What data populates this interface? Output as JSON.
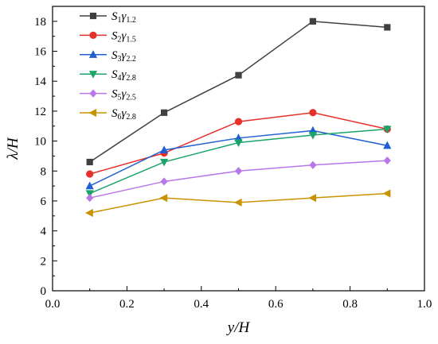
{
  "chart_data": {
    "type": "line",
    "xlabel": "y/H",
    "ylabel": "λ/H",
    "xlim": [
      0.0,
      1.0
    ],
    "ylim": [
      0,
      19
    ],
    "x_ticks": [
      0.0,
      0.2,
      0.4,
      0.6,
      0.8,
      1.0
    ],
    "y_ticks": [
      0,
      2,
      4,
      6,
      8,
      10,
      12,
      14,
      16,
      18
    ],
    "x_tick_labels": [
      "0.0",
      "0.2",
      "0.4",
      "0.6",
      "0.8",
      "1.0"
    ],
    "y_tick_labels": [
      "0",
      "2",
      "4",
      "6",
      "8",
      "10",
      "12",
      "14",
      "16",
      "18"
    ],
    "grid": false,
    "legend_position": "top-left",
    "x": [
      0.1,
      0.3,
      0.5,
      0.7,
      0.9
    ],
    "series": [
      {
        "name": "S1γ1.2",
        "sym": "S",
        "sub1": "1",
        "greek": "γ",
        "sub2": "1.2",
        "color": "#404040",
        "marker": "square",
        "values": [
          8.6,
          11.9,
          14.4,
          18.0,
          17.6
        ]
      },
      {
        "name": "S2γ1.5",
        "sym": "S",
        "sub1": "2",
        "greek": "γ",
        "sub2": "1.5",
        "color": "#e8302b",
        "marker": "circle",
        "values": [
          7.8,
          9.2,
          11.3,
          11.9,
          10.8
        ]
      },
      {
        "name": "S3γ2.2",
        "sym": "S",
        "sub1": "3",
        "greek": "γ",
        "sub2": "2.2",
        "color": "#1f5fd1",
        "marker": "triangle-up",
        "values": [
          7.0,
          9.4,
          10.2,
          10.7,
          9.7
        ]
      },
      {
        "name": "S4γ2.8",
        "sym": "S",
        "sub1": "4",
        "greek": "γ",
        "sub2": "2.8",
        "color": "#1aa46a",
        "marker": "triangle-down",
        "values": [
          6.5,
          8.6,
          9.9,
          10.4,
          10.8
        ]
      },
      {
        "name": "S5γ2.5",
        "sym": "S",
        "sub1": "5",
        "greek": "γ",
        "sub2": "2.5",
        "color": "#b877e8",
        "marker": "diamond",
        "values": [
          6.2,
          7.3,
          8.0,
          8.4,
          8.7
        ]
      },
      {
        "name": "S6γ2.8",
        "sym": "S",
        "sub1": "6",
        "greek": "γ",
        "sub2": "2.8",
        "color": "#c89200",
        "marker": "triangle-left",
        "values": [
          5.2,
          6.2,
          5.9,
          6.2,
          6.5
        ]
      }
    ]
  }
}
